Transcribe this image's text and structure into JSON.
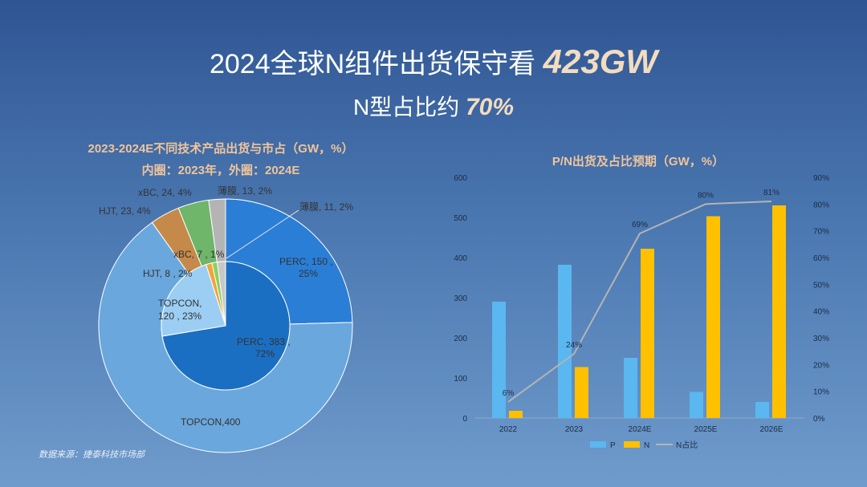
{
  "title": {
    "main_text": "2024全球N组件出货保守看",
    "main_highlight": "423GW",
    "sub_text": "N型占比约",
    "sub_highlight": "70%"
  },
  "source": "数据来源：捷泰科技市场部",
  "colors": {
    "outer_perc": "#2a7ed6",
    "outer_topcon": "#6aa7dc",
    "outer_hjt": "#c58a4a",
    "outer_xbc": "#6fb56a",
    "outer_film": "#b4b4b4",
    "inner_perc": "#1b6fc2",
    "inner_topcon": "#9ccef3",
    "inner_hjt": "#f3a33b",
    "inner_xbc": "#8ccf63",
    "inner_film": "#c8c8c8",
    "bar_p": "#5ab7f0",
    "bar_n": "#ffc000",
    "line_n": "#b4b4b4"
  },
  "chart_data": [
    {
      "type": "pie",
      "title": "2023-2024E不同技术产品出货与市占（GW，%）",
      "subtitle": "内圈：2023年，外圈：2024E",
      "rings": [
        {
          "name": "2023",
          "ring": "inner",
          "slices": [
            {
              "name": "PERC",
              "value": 383,
              "pct": 72,
              "label": "PERC, 383 ,",
              "label2": "72%"
            },
            {
              "name": "TOPCON",
              "value": 120,
              "pct": 23,
              "label": "TOPCON,",
              "label2": "120 , 23%"
            },
            {
              "name": "HJT",
              "value": 8,
              "pct": 2,
              "label": "HJT, 8 , 2%"
            },
            {
              "name": "xBC",
              "value": 7,
              "pct": 1,
              "label": "xBC, 7 , 1%"
            },
            {
              "name": "薄膜",
              "value": 11,
              "pct": 2,
              "label": "薄膜, 11, 2%"
            }
          ]
        },
        {
          "name": "2024E",
          "ring": "outer",
          "slices": [
            {
              "name": "PERC",
              "value": 150,
              "pct": 25,
              "label": "PERC, 150 ,",
              "label2": "25%"
            },
            {
              "name": "TOPCON",
              "value": 400,
              "pct": 67,
              "label": "TOPCON,400"
            },
            {
              "name": "HJT",
              "value": 23,
              "pct": 4,
              "label": "HJT, 23, 4%"
            },
            {
              "name": "xBC",
              "value": 24,
              "pct": 4,
              "label": "xBC, 24, 4%"
            },
            {
              "name": "薄膜",
              "value": 13,
              "pct": 2,
              "label": "薄膜, 13, 2%"
            }
          ]
        }
      ]
    },
    {
      "type": "bar",
      "title": "P/N出货及占比预期（GW，%）",
      "categories": [
        "2022",
        "2023",
        "2024E",
        "2025E",
        "2026E"
      ],
      "series": [
        {
          "name": "P",
          "kind": "bar",
          "axis": "left",
          "values": [
            290,
            382,
            150,
            65,
            40
          ]
        },
        {
          "name": "N",
          "kind": "bar",
          "axis": "left",
          "values": [
            18,
            127,
            422,
            503,
            530
          ]
        },
        {
          "name": "N占比",
          "kind": "line",
          "axis": "right",
          "values": [
            6,
            24,
            69,
            80,
            81
          ],
          "labels": [
            "6%",
            "24%",
            "69%",
            "80%",
            "81%"
          ]
        }
      ],
      "ylim": [
        0,
        600
      ],
      "y_ticks": [
        "0",
        "100",
        "200",
        "300",
        "400",
        "500",
        "600"
      ],
      "y2lim": [
        0,
        90
      ],
      "y2_ticks": [
        "0%",
        "10%",
        "20%",
        "30%",
        "40%",
        "50%",
        "60%",
        "70%",
        "80%",
        "90%"
      ],
      "legend": "bottom",
      "grid": false
    }
  ]
}
